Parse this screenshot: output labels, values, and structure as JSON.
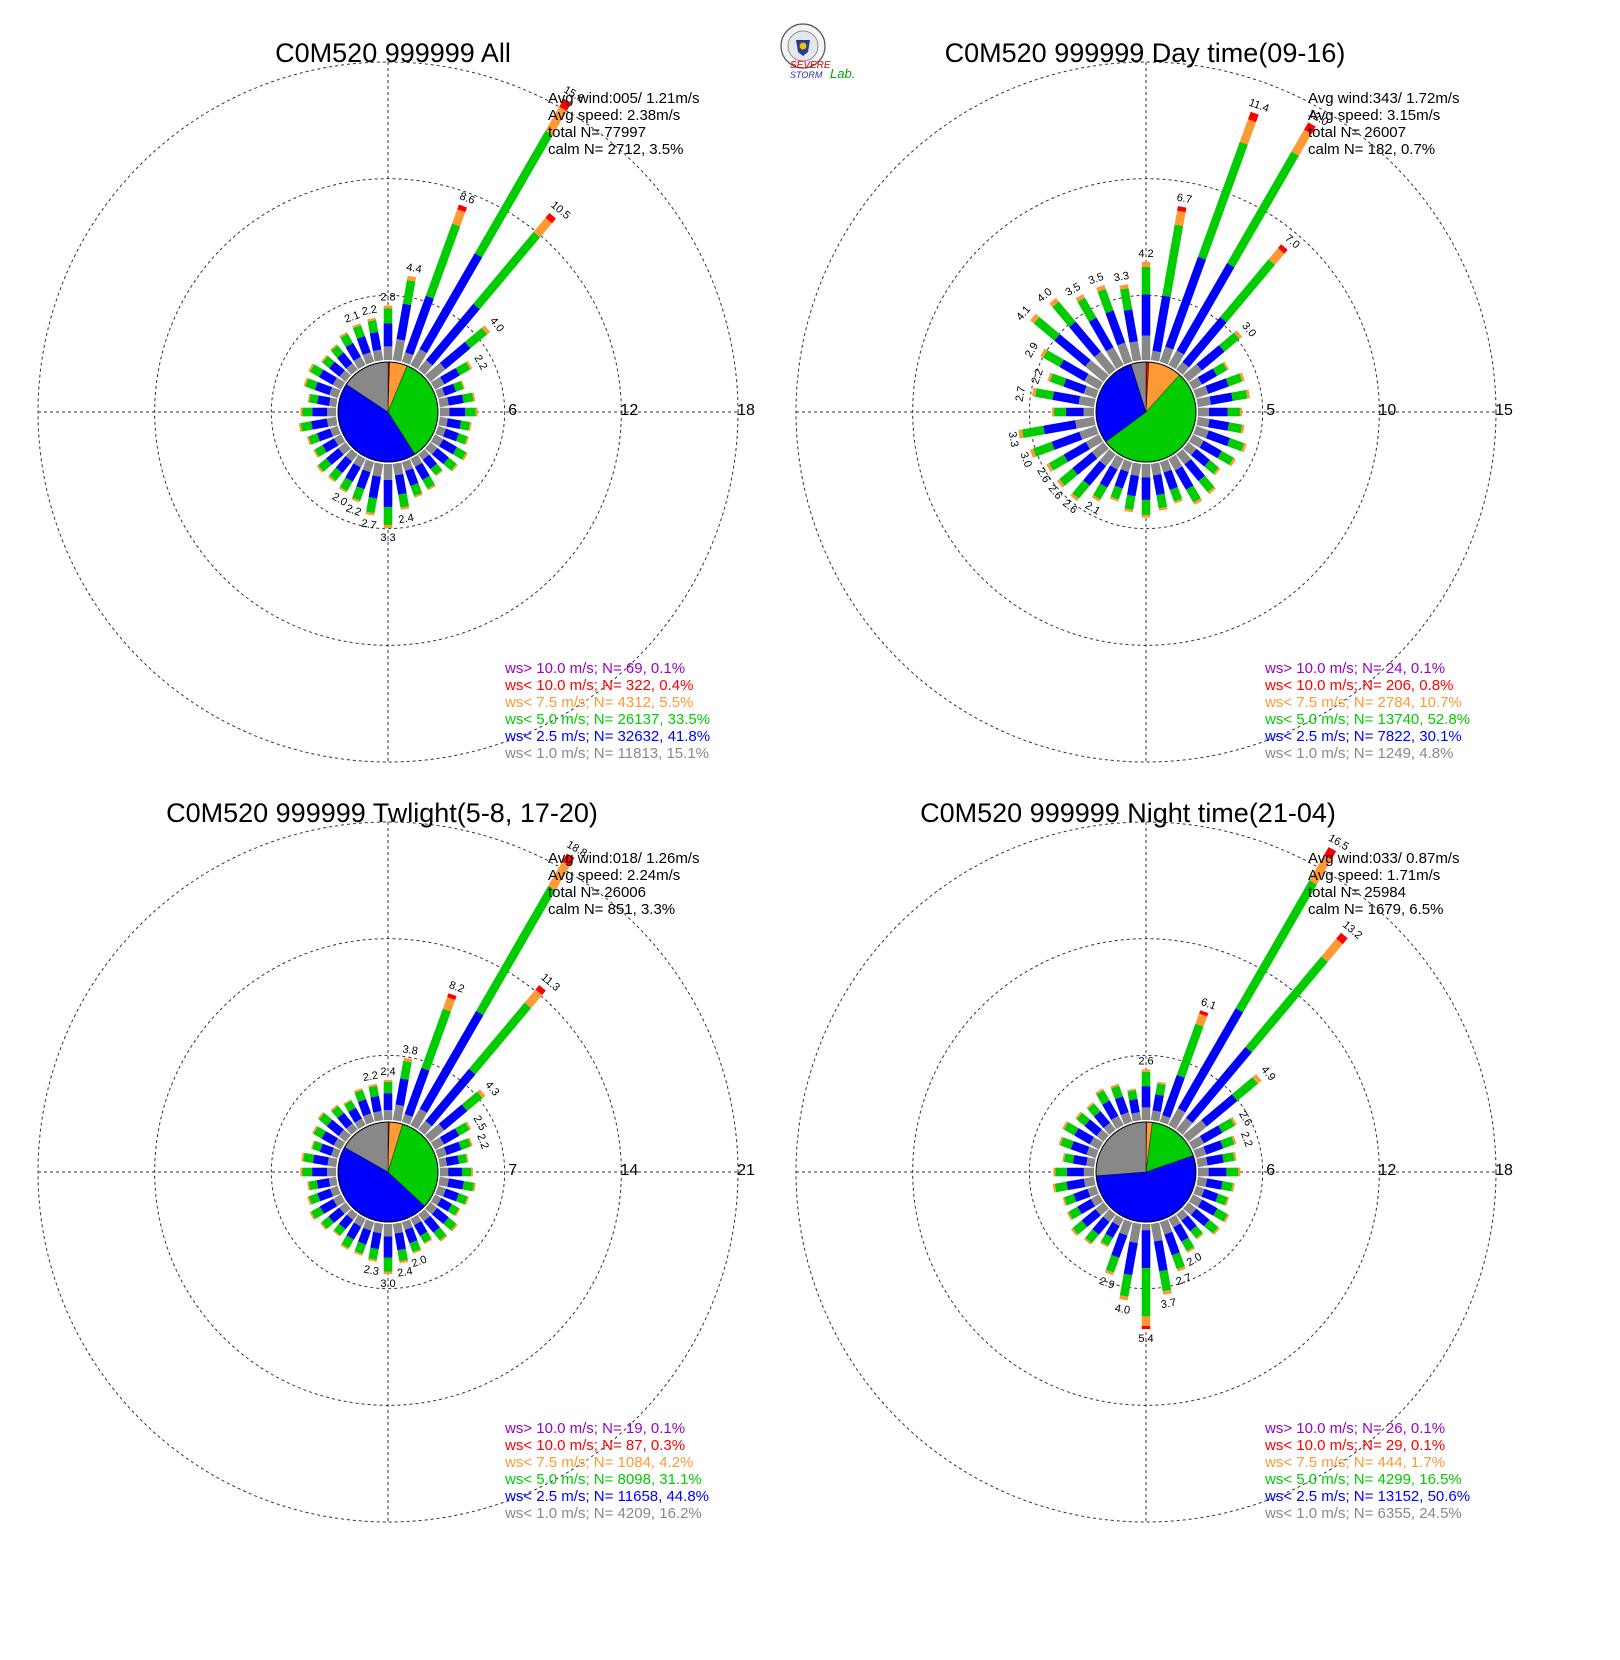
{
  "logo": {
    "word_severe": "SEVERE",
    "word_storm": "STORM",
    "word_lab": "Lab."
  },
  "colors": {
    "gt10": "#9900cc",
    "lt10": "#ff0000",
    "lt75": "#ff9933",
    "lt50": "#00cc00",
    "lt25": "#0000ff",
    "lt10ms": "#888888"
  },
  "chart_data": [
    {
      "type": "wind-rose",
      "title": "C0M520 999999 All",
      "info": [
        "Avg wind:005/ 1.21m/s",
        "Avg speed: 2.38m/s",
        "total N=       77997",
        "calm N=   2712,   3.5%"
      ],
      "ring_labels": [
        "6",
        "12",
        "18"
      ],
      "rmax": 18,
      "legend": [
        "ws> 10.0 m/s; N=    69,  0.1%",
        "ws< 10.0 m/s; N=   322,  0.4%",
        "ws<  7.5 m/s; N=  4312,  5.5%",
        "ws<  5.0 m/s; N= 26137, 33.5%",
        "ws<  2.5 m/s; N= 32632, 41.8%",
        "ws<  1.0 m/s; N= 11813, 15.1%"
      ],
      "pie_pct": [
        0.1,
        0.4,
        5.5,
        33.5,
        41.8,
        15.1
      ],
      "bars": [
        {
          "dir": 20,
          "total": 8.6,
          "label": "8.6"
        },
        {
          "dir": 30,
          "total": 15.8,
          "label": "15.8"
        },
        {
          "dir": 40,
          "total": 10.5,
          "label": "10.5"
        },
        {
          "dir": 50,
          "total": 4.0,
          "label": "4.0"
        },
        {
          "dir": 60,
          "total": 2.2,
          "label": "2.2"
        },
        {
          "dir": 10,
          "total": 4.4,
          "label": "4.4"
        },
        {
          "dir": 0,
          "total": 2.8,
          "label": "2.8"
        },
        {
          "dir": 350,
          "total": 2.2,
          "label": "2.2"
        },
        {
          "dir": 340,
          "total": 2.1,
          "label": "2.1"
        },
        {
          "dir": 170,
          "total": 2.4,
          "label": "2.4"
        },
        {
          "dir": 180,
          "total": 3.3,
          "label": "3.3"
        },
        {
          "dir": 190,
          "total": 2.7,
          "label": "2.7"
        },
        {
          "dir": 200,
          "total": 2.2,
          "label": "2.2"
        },
        {
          "dir": 210,
          "total": 2.0,
          "label": "2.0"
        }
      ],
      "default_total": 1.7
    },
    {
      "type": "wind-rose",
      "title": "C0M520 999999 Day time(09-16)",
      "info": [
        "Avg wind:343/ 1.72m/s",
        "Avg speed: 3.15m/s",
        "total N=       26007",
        "calm N=    182,   0.7%"
      ],
      "ring_labels": [
        "5",
        "10",
        "15"
      ],
      "rmax": 15,
      "legend": [
        "ws> 10.0 m/s; N=    24,  0.1%",
        "ws< 10.0 m/s; N=   206,  0.8%",
        "ws<  7.5 m/s; N=  2784, 10.7%",
        "ws<  5.0 m/s; N= 13740, 52.8%",
        "ws<  2.5 m/s; N=  7822, 30.1%",
        "ws<  1.0 m/s; N=  1249,  4.8%"
      ],
      "pie_pct": [
        0.1,
        0.8,
        10.7,
        52.8,
        30.1,
        4.8
      ],
      "bars": [
        {
          "dir": 20,
          "total": 11.4,
          "label": "11.4"
        },
        {
          "dir": 30,
          "total": 12.0,
          "label": "12.0"
        },
        {
          "dir": 40,
          "total": 7.0,
          "label": "7.0"
        },
        {
          "dir": 50,
          "total": 3.0,
          "label": "3.0"
        },
        {
          "dir": 10,
          "total": 6.7,
          "label": "6.7"
        },
        {
          "dir": 0,
          "total": 4.2,
          "label": "4.2"
        },
        {
          "dir": 350,
          "total": 3.3,
          "label": "3.3"
        },
        {
          "dir": 340,
          "total": 3.5,
          "label": "3.5"
        },
        {
          "dir": 330,
          "total": 3.5,
          "label": "3.5"
        },
        {
          "dir": 320,
          "total": 4.0,
          "label": "4.0"
        },
        {
          "dir": 310,
          "total": 4.1,
          "label": "4.1"
        },
        {
          "dir": 300,
          "total": 2.9,
          "label": "2.9"
        },
        {
          "dir": 290,
          "total": 2.2,
          "label": "2.2"
        },
        {
          "dir": 280,
          "total": 2.7,
          "label": "2.7"
        },
        {
          "dir": 260,
          "total": 3.3,
          "label": "3.3"
        },
        {
          "dir": 250,
          "total": 3.0,
          "label": "3.0"
        },
        {
          "dir": 240,
          "total": 2.6,
          "label": "2.6"
        },
        {
          "dir": 230,
          "total": 2.6,
          "label": "2.6"
        },
        {
          "dir": 220,
          "total": 2.6,
          "label": "2.6"
        },
        {
          "dir": 210,
          "total": 2.1,
          "label": "2.1"
        }
      ],
      "default_total": 2.0
    },
    {
      "type": "wind-rose",
      "title": "C0M520 999999 Twlight(5-8, 17-20)",
      "info": [
        "Avg wind:018/ 1.26m/s",
        "Avg speed: 2.24m/s",
        "total N=       26006",
        "calm N=    851,   3.3%"
      ],
      "ring_labels": [
        "7",
        "14",
        "21"
      ],
      "rmax": 21,
      "legend": [
        "ws> 10.0 m/s; N=    19,  0.1%",
        "ws< 10.0 m/s; N=    87,  0.3%",
        "ws<  7.5 m/s; N=  1084,  4.2%",
        "ws<  5.0 m/s; N=  8098, 31.1%",
        "ws<  2.5 m/s; N= 11658, 44.8%",
        "ws<  1.0 m/s; N=  4209, 16.2%"
      ],
      "pie_pct": [
        0.1,
        0.3,
        4.2,
        31.1,
        44.8,
        16.2
      ],
      "bars": [
        {
          "dir": 20,
          "total": 8.2,
          "label": "8.2"
        },
        {
          "dir": 30,
          "total": 18.8,
          "label": "18.8"
        },
        {
          "dir": 40,
          "total": 11.3,
          "label": "11.3"
        },
        {
          "dir": 50,
          "total": 4.3,
          "label": "4.3"
        },
        {
          "dir": 60,
          "total": 2.5,
          "label": "2.5"
        },
        {
          "dir": 70,
          "total": 2.2,
          "label": "2.2"
        },
        {
          "dir": 10,
          "total": 3.8,
          "label": "3.8"
        },
        {
          "dir": 0,
          "total": 2.4,
          "label": "2.4"
        },
        {
          "dir": 350,
          "total": 2.2,
          "label": "2.2"
        },
        {
          "dir": 160,
          "total": 2.0,
          "label": "2.0"
        },
        {
          "dir": 170,
          "total": 2.4,
          "label": "2.4"
        },
        {
          "dir": 180,
          "total": 3.0,
          "label": "3.0"
        },
        {
          "dir": 190,
          "total": 2.3,
          "label": "2.3"
        }
      ],
      "default_total": 1.9
    },
    {
      "type": "wind-rose",
      "title": "C0M520 999999 Night time(21-04)",
      "info": [
        "Avg wind:033/ 0.87m/s",
        "Avg speed: 1.71m/s",
        "total N=       25984",
        "calm N=   1679,   6.5%"
      ],
      "ring_labels": [
        "6",
        "12",
        "18"
      ],
      "rmax": 18,
      "legend": [
        "ws> 10.0 m/s; N=    26,  0.1%",
        "ws< 10.0 m/s; N=    29,  0.1%",
        "ws<  7.5 m/s; N=   444,  1.7%",
        "ws<  5.0 m/s; N=  4299, 16.5%",
        "ws<  2.5 m/s; N= 13152, 50.6%",
        "ws<  1.0 m/s; N=  6355, 24.5%"
      ],
      "pie_pct": [
        0.1,
        0.1,
        1.7,
        16.5,
        50.6,
        24.5
      ],
      "bars": [
        {
          "dir": 20,
          "total": 6.1,
          "label": "6.1"
        },
        {
          "dir": 30,
          "total": 16.5,
          "label": "16.5"
        },
        {
          "dir": 40,
          "total": 13.2,
          "label": "13.2"
        },
        {
          "dir": 50,
          "total": 4.9,
          "label": "4.9"
        },
        {
          "dir": 60,
          "total": 2.6,
          "label": "2.6"
        },
        {
          "dir": 70,
          "total": 2.2,
          "label": "2.2"
        },
        {
          "dir": 0,
          "total": 2.6,
          "label": "2.6"
        },
        {
          "dir": 150,
          "total": 2.0,
          "label": "2.0"
        },
        {
          "dir": 160,
          "total": 2.7,
          "label": "2.7"
        },
        {
          "dir": 170,
          "total": 3.7,
          "label": "3.7"
        },
        {
          "dir": 180,
          "total": 5.4,
          "label": "5.4"
        },
        {
          "dir": 190,
          "total": 4.0,
          "label": "4.0"
        },
        {
          "dir": 200,
          "total": 2.9,
          "label": "2.9"
        }
      ],
      "default_total": 1.9
    }
  ]
}
